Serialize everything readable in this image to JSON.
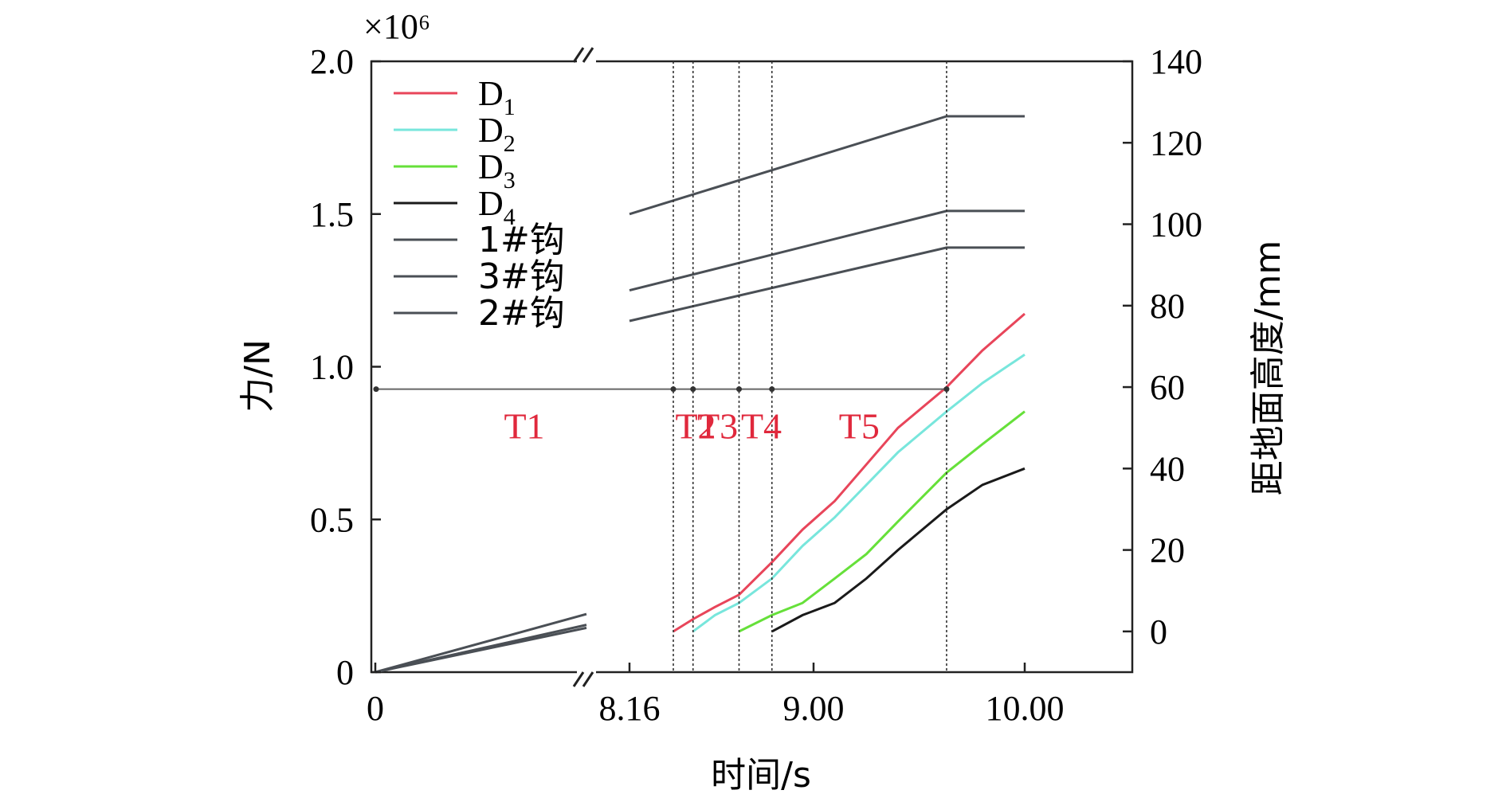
{
  "chart_data": {
    "type": "line",
    "multiplier": "×10⁶",
    "xlabel": "时间/s",
    "ylabel_left": "力/N",
    "ylabel_right": "距地面高度/mm",
    "left_ticks": [
      "0",
      "0.5",
      "1.0",
      "1.5",
      "2.0"
    ],
    "right_ticks": [
      "0",
      "20",
      "40",
      "60",
      "80",
      "100",
      "120",
      "140"
    ],
    "x_ticks": [
      "0",
      "8.16",
      "9.00",
      "10.00"
    ],
    "ylim_left": [
      0,
      2.0
    ],
    "ylim_right": [
      -10,
      140
    ],
    "axis_break": "between 0 and 8.16 on the time axis",
    "legend": {
      "placement": "top-left",
      "entries": [
        {
          "sub": "1",
          "label": "D",
          "color": "#e8455a"
        },
        {
          "sub": "2",
          "label": "D",
          "color": "#78e6dc"
        },
        {
          "sub": "3",
          "label": "D",
          "color": "#66e03a"
        },
        {
          "sub": "4",
          "label": "D",
          "color": "#1a1a1a"
        },
        {
          "label": "1#钩",
          "color": "#4a4f55"
        },
        {
          "label": "3#钩",
          "color": "#4a4f55"
        },
        {
          "label": "2#钩",
          "color": "#4a4f55"
        }
      ]
    },
    "phases": {
      "labels": [
        "T1",
        "T2",
        "T3",
        "T4",
        "T5"
      ],
      "label_color": "#e0283c",
      "boundaries_s": [
        8.36,
        8.45,
        8.66,
        8.81,
        9.63
      ]
    },
    "series": [
      {
        "name": "1#钩",
        "axis": "left",
        "color": "#4a4f55",
        "segments": [
          [
            [
              0,
              0
            ],
            [
              7.99,
              0.19
            ]
          ],
          [
            [
              8.16,
              1.5
            ],
            [
              9.63,
              1.82
            ],
            [
              10.0,
              1.82
            ]
          ]
        ]
      },
      {
        "name": "3#钩",
        "axis": "left",
        "color": "#4a4f55",
        "segments": [
          [
            [
              0,
              0
            ],
            [
              7.99,
              0.155
            ]
          ],
          [
            [
              8.16,
              1.25
            ],
            [
              9.63,
              1.51
            ],
            [
              10.0,
              1.51
            ]
          ]
        ]
      },
      {
        "name": "2#钩",
        "axis": "left",
        "color": "#4a4f55",
        "segments": [
          [
            [
              0,
              0
            ],
            [
              7.99,
              0.145
            ]
          ],
          [
            [
              8.16,
              1.15
            ],
            [
              9.63,
              1.39
            ],
            [
              10.0,
              1.39
            ]
          ]
        ]
      },
      {
        "name": "D1",
        "axis": "right",
        "color": "#e8455a",
        "points": [
          [
            8.36,
            0
          ],
          [
            8.45,
            3
          ],
          [
            8.55,
            6
          ],
          [
            8.66,
            9
          ],
          [
            8.81,
            17
          ],
          [
            8.95,
            25
          ],
          [
            9.1,
            32
          ],
          [
            9.25,
            41
          ],
          [
            9.4,
            50
          ],
          [
            9.63,
            60
          ],
          [
            9.8,
            69
          ],
          [
            10.0,
            78
          ]
        ]
      },
      {
        "name": "D2",
        "axis": "right",
        "color": "#78e6dc",
        "points": [
          [
            8.45,
            0
          ],
          [
            8.55,
            4
          ],
          [
            8.66,
            7
          ],
          [
            8.81,
            13
          ],
          [
            8.95,
            21
          ],
          [
            9.1,
            28
          ],
          [
            9.25,
            36
          ],
          [
            9.4,
            44
          ],
          [
            9.63,
            54
          ],
          [
            9.8,
            61
          ],
          [
            10.0,
            68
          ]
        ]
      },
      {
        "name": "D3",
        "axis": "right",
        "color": "#66e03a",
        "points": [
          [
            8.66,
            0
          ],
          [
            8.81,
            4
          ],
          [
            8.95,
            7
          ],
          [
            9.1,
            13
          ],
          [
            9.25,
            19
          ],
          [
            9.4,
            27
          ],
          [
            9.63,
            39
          ],
          [
            9.8,
            46
          ],
          [
            10.0,
            54
          ]
        ]
      },
      {
        "name": "D4",
        "axis": "right",
        "color": "#1a1a1a",
        "points": [
          [
            8.81,
            0
          ],
          [
            8.95,
            4
          ],
          [
            9.1,
            7
          ],
          [
            9.25,
            13
          ],
          [
            9.4,
            20
          ],
          [
            9.63,
            30
          ],
          [
            9.8,
            36
          ],
          [
            10.0,
            40
          ]
        ]
      }
    ]
  }
}
